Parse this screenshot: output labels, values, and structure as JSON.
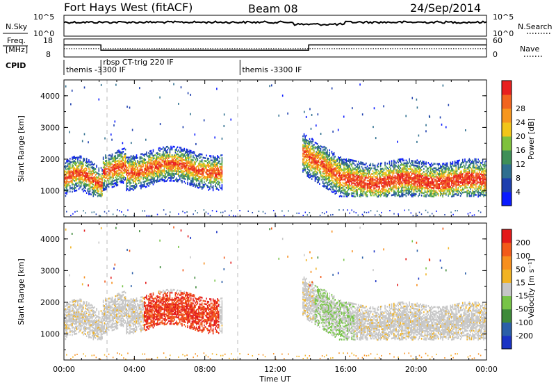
{
  "header": {
    "station": "Fort Hays West (fitACF)",
    "beam": "Beam 08",
    "date": "24/Sep/2014"
  },
  "noise_panel": {
    "left_label": "N.Sky",
    "right_label": "N.Search",
    "left_ticks": [
      "10^5",
      "10^0"
    ],
    "right_ticks": [
      "10^5",
      "10^0"
    ]
  },
  "freq_panel": {
    "left_label_1": "Freq.",
    "left_label_2": "[MHz]",
    "right_label": "Nave",
    "left_ticks": [
      "18",
      "8"
    ],
    "right_ticks": [
      "60",
      "0"
    ]
  },
  "cpid": {
    "label": "CPID",
    "entries": [
      {
        "time_h": 0.0,
        "text": "themis -3300 IF"
      },
      {
        "time_h": 2.1,
        "text": "rbsp CT-trig 220 IF"
      },
      {
        "time_h": 10.0,
        "text": "themis -3300 IF"
      }
    ]
  },
  "chart_data": [
    {
      "type": "heatmap",
      "name": "power",
      "ylabel": "Slant Range [km]",
      "xlim": [
        0,
        24
      ],
      "ylim": [
        180,
        4500
      ],
      "yticks": [
        "1000",
        "2000",
        "3000",
        "4000"
      ],
      "colorbar": {
        "label": "Power [dB]",
        "levels": [
          "4",
          "8",
          "12",
          "16",
          "20",
          "24",
          "28"
        ],
        "colors": [
          "#0a1aff",
          "#1d3fae",
          "#2f6f8f",
          "#3f8f57",
          "#7fc13c",
          "#f2c518",
          "#f7961d",
          "#f2641e",
          "#e8201e"
        ]
      }
    },
    {
      "type": "heatmap",
      "name": "velocity",
      "ylabel": "Slant Range [km]",
      "xlabel": "Time UT",
      "xlim": [
        0,
        24
      ],
      "ylim": [
        180,
        4500
      ],
      "yticks": [
        "1000",
        "2000",
        "3000",
        "4000"
      ],
      "xticks": [
        "00:00",
        "04:00",
        "08:00",
        "12:00",
        "16:00",
        "20:00",
        "00:00"
      ],
      "colorbar": {
        "label": "Velocity [m s⁻¹]",
        "levels": [
          "200",
          "100",
          "50",
          "15",
          "-15",
          "-50",
          "-100",
          "-200"
        ],
        "colors": [
          "#1a33c4",
          "#2b5fa8",
          "#3e8a3a",
          "#77c447",
          "#c6c6c6",
          "#f1b324",
          "#f78f1e",
          "#f25a1a",
          "#e31a1a"
        ]
      }
    }
  ]
}
